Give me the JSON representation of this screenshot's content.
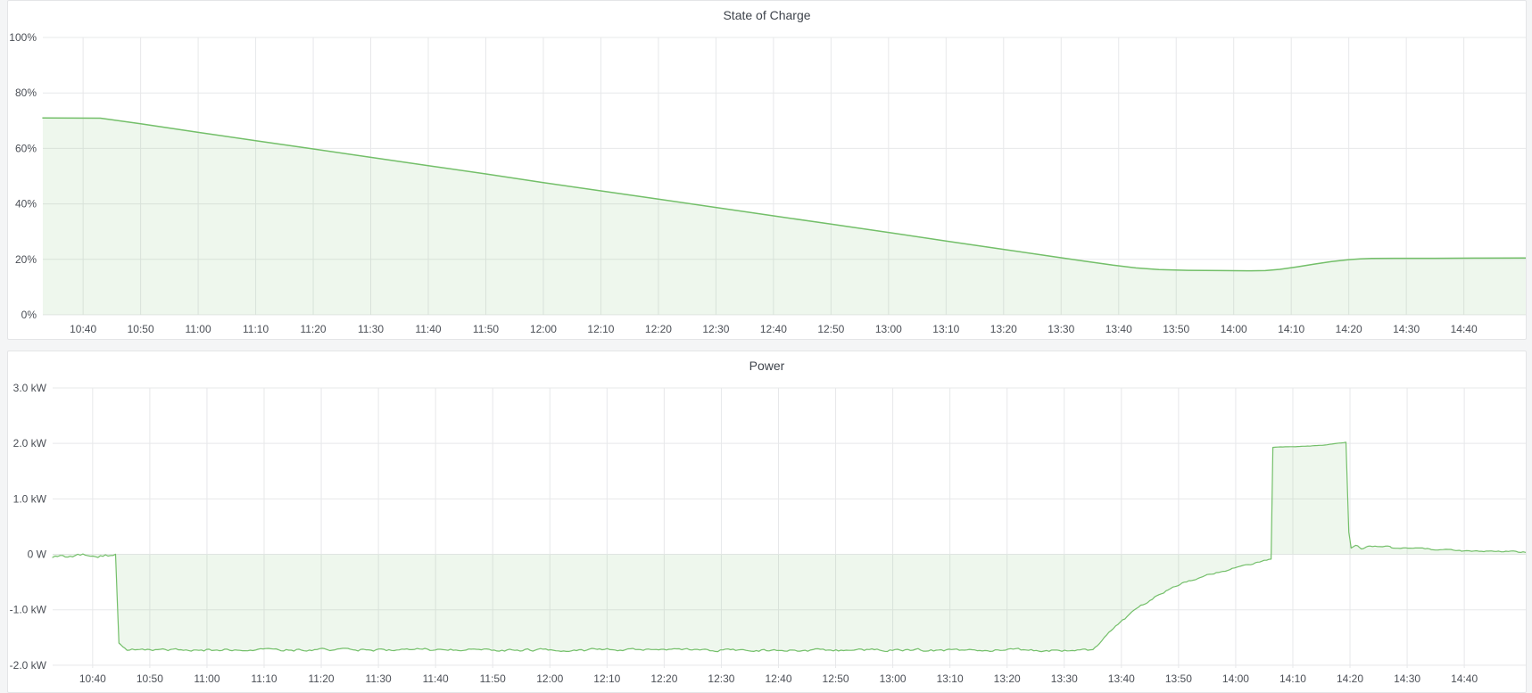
{
  "panels": {
    "soc": {
      "title": "State of Charge"
    },
    "power": {
      "title": "Power"
    }
  },
  "colors": {
    "line_green": "#73bf69",
    "fill_green": "rgba(115,191,105,0.12)",
    "grid": "#e7e8ea",
    "tick_text": "#4b4f56",
    "panel_bg": "#ffffff",
    "panel_border": "#e4e5e7",
    "page_bg": "#f4f5f6"
  },
  "chart_data": [
    {
      "type": "area",
      "title": "State of Charge",
      "unit": "%",
      "x_range_minutes": [
        633,
        892
      ],
      "y_range": [
        0,
        100
      ],
      "grid": true,
      "legend": "none",
      "y_ticks": [
        {
          "v": 100,
          "label": "100%"
        },
        {
          "v": 80,
          "label": "80%"
        },
        {
          "v": 60,
          "label": "60%"
        },
        {
          "v": 40,
          "label": "40%"
        },
        {
          "v": 20,
          "label": "20%"
        },
        {
          "v": 0,
          "label": "0%"
        }
      ],
      "x_ticks": [
        {
          "t": 640,
          "label": "10:40"
        },
        {
          "t": 650,
          "label": "10:50"
        },
        {
          "t": 660,
          "label": "11:00"
        },
        {
          "t": 670,
          "label": "11:10"
        },
        {
          "t": 680,
          "label": "11:20"
        },
        {
          "t": 690,
          "label": "11:30"
        },
        {
          "t": 700,
          "label": "11:40"
        },
        {
          "t": 710,
          "label": "11:50"
        },
        {
          "t": 720,
          "label": "12:00"
        },
        {
          "t": 730,
          "label": "12:10"
        },
        {
          "t": 740,
          "label": "12:20"
        },
        {
          "t": 750,
          "label": "12:30"
        },
        {
          "t": 760,
          "label": "12:40"
        },
        {
          "t": 770,
          "label": "12:50"
        },
        {
          "t": 780,
          "label": "13:00"
        },
        {
          "t": 790,
          "label": "13:10"
        },
        {
          "t": 800,
          "label": "13:20"
        },
        {
          "t": 810,
          "label": "13:30"
        },
        {
          "t": 820,
          "label": "13:40"
        },
        {
          "t": 830,
          "label": "13:50"
        },
        {
          "t": 840,
          "label": "14:00"
        },
        {
          "t": 850,
          "label": "14:10"
        },
        {
          "t": 860,
          "label": "14:20"
        },
        {
          "t": 870,
          "label": "14:30"
        },
        {
          "t": 880,
          "label": "14:40"
        }
      ],
      "points": [
        [
          633,
          71.0
        ],
        [
          643,
          70.9
        ],
        [
          650,
          68.9
        ],
        [
          660,
          65.8
        ],
        [
          670,
          62.8
        ],
        [
          680,
          59.8
        ],
        [
          690,
          56.8
        ],
        [
          700,
          53.8
        ],
        [
          710,
          50.8
        ],
        [
          720,
          47.7
        ],
        [
          730,
          44.7
        ],
        [
          740,
          41.7
        ],
        [
          750,
          38.7
        ],
        [
          760,
          35.7
        ],
        [
          770,
          32.7
        ],
        [
          780,
          29.7
        ],
        [
          790,
          26.6
        ],
        [
          800,
          23.6
        ],
        [
          808,
          21.2
        ],
        [
          814,
          19.4
        ],
        [
          819,
          17.9
        ],
        [
          823,
          16.9
        ],
        [
          827,
          16.3
        ],
        [
          832,
          16.05
        ],
        [
          838,
          15.95
        ],
        [
          843,
          15.9
        ],
        [
          845.5,
          15.95
        ],
        [
          848,
          16.4
        ],
        [
          851,
          17.3
        ],
        [
          854,
          18.3
        ],
        [
          857,
          19.2
        ],
        [
          860,
          19.9
        ],
        [
          862,
          20.2
        ],
        [
          864,
          20.35
        ],
        [
          868,
          20.4
        ],
        [
          875,
          20.4
        ],
        [
          883,
          20.45
        ],
        [
          892,
          20.5
        ]
      ]
    },
    {
      "type": "area",
      "title": "Power",
      "unit": "kW",
      "x_range_minutes": [
        633,
        892
      ],
      "y_range": [
        -2.05,
        3.0
      ],
      "grid": true,
      "legend": "none",
      "y_ticks": [
        {
          "v": 3,
          "label": "3.0 kW"
        },
        {
          "v": 2,
          "label": "2.0 kW"
        },
        {
          "v": 1,
          "label": "1.0 kW"
        },
        {
          "v": 0,
          "label": "0 W"
        },
        {
          "v": -1,
          "label": "-1.0 kW"
        },
        {
          "v": -2,
          "label": "-2.0 kW"
        }
      ],
      "x_ticks": [
        {
          "t": 640,
          "label": "10:40"
        },
        {
          "t": 650,
          "label": "10:50"
        },
        {
          "t": 660,
          "label": "11:00"
        },
        {
          "t": 670,
          "label": "11:10"
        },
        {
          "t": 680,
          "label": "11:20"
        },
        {
          "t": 690,
          "label": "11:30"
        },
        {
          "t": 700,
          "label": "11:40"
        },
        {
          "t": 710,
          "label": "11:50"
        },
        {
          "t": 720,
          "label": "12:00"
        },
        {
          "t": 730,
          "label": "12:10"
        },
        {
          "t": 740,
          "label": "12:20"
        },
        {
          "t": 750,
          "label": "12:30"
        },
        {
          "t": 760,
          "label": "12:40"
        },
        {
          "t": 770,
          "label": "12:50"
        },
        {
          "t": 780,
          "label": "13:00"
        },
        {
          "t": 790,
          "label": "13:10"
        },
        {
          "t": 800,
          "label": "13:20"
        },
        {
          "t": 810,
          "label": "13:30"
        },
        {
          "t": 820,
          "label": "13:40"
        },
        {
          "t": 830,
          "label": "13:50"
        },
        {
          "t": 840,
          "label": "14:00"
        },
        {
          "t": 850,
          "label": "14:10"
        },
        {
          "t": 860,
          "label": "14:20"
        },
        {
          "t": 870,
          "label": "14:30"
        },
        {
          "t": 880,
          "label": "14:40"
        }
      ],
      "points": [
        [
          633,
          -0.03,
          0.03
        ],
        [
          644,
          -0.02,
          0.03
        ],
        [
          644.6,
          -1.6,
          0.0
        ],
        [
          646,
          -1.72,
          0.022
        ],
        [
          815,
          -1.73,
          0.022
        ],
        [
          817,
          -1.5,
          0.02
        ],
        [
          819,
          -1.3,
          0.02
        ],
        [
          821,
          -1.12,
          0.018
        ],
        [
          823,
          -0.96,
          0.018
        ],
        [
          825,
          -0.82,
          0.016
        ],
        [
          827,
          -0.7,
          0.016
        ],
        [
          829,
          -0.6,
          0.015
        ],
        [
          831,
          -0.51,
          0.015
        ],
        [
          833,
          -0.44,
          0.014
        ],
        [
          835,
          -0.38,
          0.014
        ],
        [
          837,
          -0.32,
          0.013
        ],
        [
          839,
          -0.27,
          0.013
        ],
        [
          841,
          -0.22,
          0.012
        ],
        [
          843,
          -0.17,
          0.012
        ],
        [
          845,
          -0.12,
          0.012
        ],
        [
          846.2,
          -0.09,
          0.01
        ],
        [
          846.5,
          1.93,
          0.004
        ],
        [
          850,
          1.94,
          0.004
        ],
        [
          853,
          1.95,
          0.004
        ],
        [
          856,
          1.975,
          0.004
        ],
        [
          859.3,
          2.02,
          0.0
        ],
        [
          859.8,
          0.4,
          0.0
        ],
        [
          860.2,
          0.12,
          0.01
        ],
        [
          861,
          0.17,
          0.012
        ],
        [
          862,
          0.11,
          0.012
        ],
        [
          863.5,
          0.15,
          0.01
        ],
        [
          867,
          0.14,
          0.01
        ],
        [
          867.5,
          0.11,
          0.01
        ],
        [
          871,
          0.105,
          0.01
        ],
        [
          874,
          0.1,
          0.01
        ],
        [
          874.5,
          0.08,
          0.01
        ],
        [
          879,
          0.075,
          0.01
        ],
        [
          879.5,
          0.06,
          0.012
        ],
        [
          883,
          0.055,
          0.012
        ],
        [
          886,
          0.05,
          0.012
        ],
        [
          889,
          0.045,
          0.014
        ],
        [
          892,
          0.035,
          0.012
        ]
      ]
    }
  ]
}
